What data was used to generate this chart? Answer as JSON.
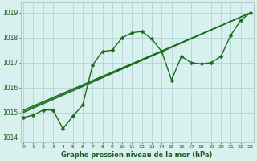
{
  "title": "Graphe pression niveau de la mer (hPa)",
  "series": [
    {
      "name": "line1_wavy",
      "x": [
        0,
        1,
        2,
        3,
        4,
        5,
        6,
        7,
        8,
        9,
        10,
        11,
        12,
        13,
        14,
        15,
        16,
        17,
        18,
        19,
        20,
        21,
        22,
        23
      ],
      "y": [
        1014.8,
        1014.9,
        1015.1,
        1015.1,
        1014.35,
        1014.85,
        1015.3,
        1016.9,
        1017.45,
        1017.5,
        1018.0,
        1018.2,
        1018.25,
        1017.95,
        1017.45,
        1016.3,
        1017.25,
        1017.0,
        1016.95,
        1017.0,
        1017.25,
        1018.1,
        1018.7,
        1019.0
      ],
      "color": "#1a6b1a",
      "marker": "D",
      "markersize": 2.5,
      "linewidth": 1.0
    },
    {
      "name": "line2_straight1",
      "x": [
        0,
        23
      ],
      "y": [
        1015.0,
        1019.0
      ],
      "color": "#1a6b1a",
      "marker": null,
      "markersize": 0,
      "linewidth": 0.9
    },
    {
      "name": "line3_straight2",
      "x": [
        0,
        23
      ],
      "y": [
        1015.05,
        1019.0
      ],
      "color": "#1a6b1a",
      "marker": null,
      "markersize": 0,
      "linewidth": 0.9
    },
    {
      "name": "line4_straight3",
      "x": [
        0,
        23
      ],
      "y": [
        1015.1,
        1019.0
      ],
      "color": "#1a6b1a",
      "marker": null,
      "markersize": 0,
      "linewidth": 0.9
    }
  ],
  "ylim": [
    1013.8,
    1019.4
  ],
  "xlim": [
    -0.3,
    23.3
  ],
  "yticks": [
    1014,
    1015,
    1016,
    1017,
    1018,
    1019
  ],
  "xticks": [
    0,
    1,
    2,
    3,
    4,
    5,
    6,
    7,
    8,
    9,
    10,
    11,
    12,
    13,
    14,
    15,
    16,
    17,
    18,
    19,
    20,
    21,
    22,
    23
  ],
  "bg_color": "#d8f0ee",
  "grid_color": "#aecece",
  "text_color": "#1a5c1a",
  "title_color": "#1a5c1a",
  "spine_color": "#aecece"
}
